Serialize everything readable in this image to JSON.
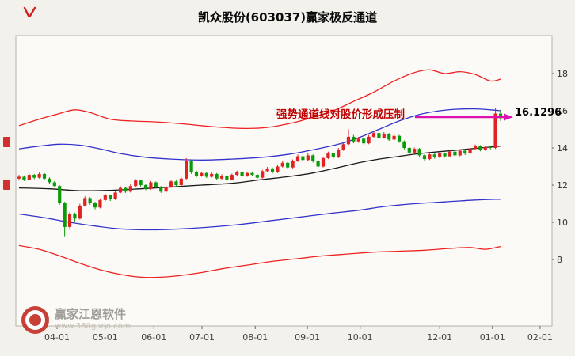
{
  "title": "凯众股份(603037)赢家极反通道",
  "annotation": {
    "text": "强势通道线对股价形成压制",
    "price_label": "16.1296",
    "text_color": "#c00000",
    "arrow_color": "#dd10b0"
  },
  "watermark": {
    "name": "赢家江恩软件",
    "url": "www.360gann.com"
  },
  "chart_data": {
    "type": "candlestick",
    "title": "凯众股份(603037)赢家极反通道",
    "xlim": [
      -0.63,
      105.16
    ],
    "ylim": [
      4.43,
      20.04
    ],
    "y_ticks": [
      8,
      10,
      12,
      14,
      16,
      18
    ],
    "x_ticks": [
      {
        "label": "04-01",
        "i": 7.5
      },
      {
        "label": "05-01",
        "i": 17.0
      },
      {
        "label": "06-01",
        "i": 26.6
      },
      {
        "label": "07-01",
        "i": 36.1
      },
      {
        "label": "08-01",
        "i": 46.6
      },
      {
        "label": "09-01",
        "i": 56.9
      },
      {
        "label": "10-01",
        "i": 67.3
      },
      {
        "label": "12-01",
        "i": 83.0
      },
      {
        "label": "01-01",
        "i": 93.4
      },
      {
        "label": "02-01",
        "i": 102.8
      }
    ],
    "colors": {
      "up": "#e02222",
      "down": "#0a9a0a"
    },
    "ohlc": [
      [
        12.35,
        12.55,
        12.25,
        12.45
      ],
      [
        12.45,
        12.52,
        12.22,
        12.3
      ],
      [
        12.3,
        12.62,
        12.26,
        12.55
      ],
      [
        12.55,
        12.6,
        12.32,
        12.4
      ],
      [
        12.4,
        12.68,
        12.35,
        12.6
      ],
      [
        12.6,
        12.65,
        12.28,
        12.35
      ],
      [
        12.35,
        12.42,
        12.08,
        12.15
      ],
      [
        12.15,
        12.22,
        11.88,
        11.95
      ],
      [
        11.95,
        12.0,
        10.95,
        11.05
      ],
      [
        11.05,
        11.1,
        9.25,
        9.75
      ],
      [
        9.75,
        10.55,
        9.6,
        10.45
      ],
      [
        10.45,
        10.52,
        10.05,
        10.2
      ],
      [
        10.2,
        11.0,
        10.15,
        10.9
      ],
      [
        10.9,
        11.4,
        10.85,
        11.3
      ],
      [
        11.3,
        11.35,
        10.95,
        11.05
      ],
      [
        11.05,
        11.1,
        10.7,
        10.8
      ],
      [
        10.8,
        11.28,
        10.75,
        11.2
      ],
      [
        11.2,
        11.55,
        11.12,
        11.45
      ],
      [
        11.45,
        11.5,
        11.15,
        11.25
      ],
      [
        11.25,
        11.68,
        11.2,
        11.6
      ],
      [
        11.6,
        11.95,
        11.55,
        11.85
      ],
      [
        11.85,
        11.92,
        11.58,
        11.65
      ],
      [
        11.65,
        12.05,
        11.6,
        11.95
      ],
      [
        11.95,
        12.32,
        11.9,
        12.25
      ],
      [
        12.25,
        12.3,
        11.92,
        12.0
      ],
      [
        12.0,
        12.08,
        11.72,
        11.8
      ],
      [
        11.8,
        12.22,
        11.75,
        12.15
      ],
      [
        12.15,
        12.2,
        11.82,
        11.9
      ],
      [
        11.9,
        11.95,
        11.58,
        11.65
      ],
      [
        11.65,
        12.0,
        11.6,
        11.9
      ],
      [
        11.9,
        12.28,
        11.85,
        12.2
      ],
      [
        12.2,
        12.25,
        11.92,
        12.0
      ],
      [
        12.0,
        12.42,
        11.95,
        12.35
      ],
      [
        12.35,
        13.45,
        12.3,
        13.3
      ],
      [
        13.3,
        13.35,
        12.6,
        12.7
      ],
      [
        12.7,
        12.78,
        12.42,
        12.5
      ],
      [
        12.5,
        12.72,
        12.45,
        12.65
      ],
      [
        12.65,
        12.7,
        12.38,
        12.45
      ],
      [
        12.45,
        12.68,
        12.4,
        12.6
      ],
      [
        12.6,
        12.65,
        12.28,
        12.35
      ],
      [
        12.35,
        12.58,
        12.3,
        12.5
      ],
      [
        12.5,
        12.55,
        12.22,
        12.3
      ],
      [
        12.3,
        12.62,
        12.25,
        12.55
      ],
      [
        12.55,
        12.78,
        12.5,
        12.7
      ],
      [
        12.7,
        12.75,
        12.42,
        12.5
      ],
      [
        12.5,
        12.72,
        12.45,
        12.65
      ],
      [
        12.65,
        12.7,
        12.48,
        12.55
      ],
      [
        12.55,
        12.6,
        12.32,
        12.4
      ],
      [
        12.4,
        12.82,
        12.35,
        12.75
      ],
      [
        12.75,
        12.98,
        12.7,
        12.9
      ],
      [
        12.9,
        12.95,
        12.62,
        12.7
      ],
      [
        12.7,
        13.08,
        12.65,
        13.0
      ],
      [
        13.0,
        13.28,
        12.95,
        13.2
      ],
      [
        13.2,
        13.25,
        12.88,
        12.95
      ],
      [
        12.95,
        13.38,
        12.9,
        13.3
      ],
      [
        13.3,
        13.65,
        13.25,
        13.55
      ],
      [
        13.55,
        13.6,
        13.28,
        13.35
      ],
      [
        13.35,
        13.7,
        13.3,
        13.6
      ],
      [
        13.6,
        13.65,
        13.22,
        13.3
      ],
      [
        13.3,
        13.35,
        12.92,
        13.0
      ],
      [
        13.0,
        13.52,
        12.95,
        13.45
      ],
      [
        13.45,
        13.8,
        13.4,
        13.7
      ],
      [
        13.7,
        13.75,
        13.42,
        13.5
      ],
      [
        13.5,
        14.0,
        13.45,
        13.9
      ],
      [
        13.9,
        14.3,
        13.85,
        14.2
      ],
      [
        14.2,
        15.0,
        14.15,
        14.6
      ],
      [
        14.6,
        14.7,
        14.25,
        14.35
      ],
      [
        14.35,
        14.6,
        14.28,
        14.5
      ],
      [
        14.5,
        14.55,
        14.18,
        14.25
      ],
      [
        14.25,
        14.7,
        14.2,
        14.6
      ],
      [
        14.6,
        14.92,
        14.55,
        14.8
      ],
      [
        14.8,
        14.85,
        14.48,
        14.55
      ],
      [
        14.55,
        14.85,
        14.5,
        14.75
      ],
      [
        14.75,
        14.8,
        14.38,
        14.45
      ],
      [
        14.45,
        14.75,
        14.4,
        14.65
      ],
      [
        14.65,
        14.7,
        14.28,
        14.35
      ],
      [
        14.35,
        14.4,
        13.92,
        14.0
      ],
      [
        14.0,
        14.05,
        13.68,
        13.75
      ],
      [
        13.75,
        14.02,
        13.7,
        13.95
      ],
      [
        13.95,
        14.0,
        13.52,
        13.6
      ],
      [
        13.6,
        13.65,
        13.32,
        13.4
      ],
      [
        13.4,
        13.72,
        13.35,
        13.65
      ],
      [
        13.65,
        13.7,
        13.42,
        13.5
      ],
      [
        13.5,
        13.78,
        13.45,
        13.7
      ],
      [
        13.7,
        13.75,
        13.48,
        13.55
      ],
      [
        13.55,
        13.88,
        13.5,
        13.8
      ],
      [
        13.8,
        13.85,
        13.52,
        13.6
      ],
      [
        13.6,
        13.92,
        13.55,
        13.85
      ],
      [
        13.85,
        13.9,
        13.62,
        13.7
      ],
      [
        13.7,
        14.02,
        13.65,
        13.95
      ],
      [
        13.95,
        14.18,
        13.9,
        14.1
      ],
      [
        14.1,
        14.15,
        13.82,
        13.9
      ],
      [
        13.9,
        14.12,
        13.85,
        14.05
      ],
      [
        14.05,
        14.1,
        13.92,
        14.0
      ],
      [
        14.0,
        16.13,
        13.95,
        15.85
      ],
      [
        15.85,
        16.05,
        15.45,
        15.6
      ]
    ],
    "channels": [
      {
        "name": "outer-upper-red",
        "color": "#ee2222",
        "points": [
          [
            0,
            15.2
          ],
          [
            4,
            15.55
          ],
          [
            8,
            15.85
          ],
          [
            11,
            16.05
          ],
          [
            14,
            15.9
          ],
          [
            18,
            15.55
          ],
          [
            22,
            15.45
          ],
          [
            27,
            15.4
          ],
          [
            32,
            15.3
          ],
          [
            38,
            15.15
          ],
          [
            44,
            15.05
          ],
          [
            49,
            15.1
          ],
          [
            54,
            15.35
          ],
          [
            58,
            15.65
          ],
          [
            62,
            16.0
          ],
          [
            66,
            16.5
          ],
          [
            70,
            17.0
          ],
          [
            74,
            17.6
          ],
          [
            78,
            18.05
          ],
          [
            81,
            18.2
          ],
          [
            84,
            18.0
          ],
          [
            87,
            18.1
          ],
          [
            90,
            17.95
          ],
          [
            93,
            17.6
          ],
          [
            95,
            17.7
          ]
        ]
      },
      {
        "name": "inner-upper-blue",
        "color": "#3333cc",
        "points": [
          [
            0,
            13.95
          ],
          [
            4,
            14.1
          ],
          [
            8,
            14.2
          ],
          [
            12,
            14.15
          ],
          [
            16,
            13.95
          ],
          [
            20,
            13.7
          ],
          [
            25,
            13.5
          ],
          [
            30,
            13.4
          ],
          [
            36,
            13.35
          ],
          [
            42,
            13.4
          ],
          [
            48,
            13.5
          ],
          [
            53,
            13.65
          ],
          [
            58,
            13.9
          ],
          [
            63,
            14.2
          ],
          [
            67,
            14.55
          ],
          [
            71,
            15.0
          ],
          [
            75,
            15.45
          ],
          [
            79,
            15.8
          ],
          [
            83,
            16.0
          ],
          [
            86,
            16.08
          ],
          [
            90,
            16.1
          ],
          [
            93,
            16.05
          ],
          [
            95,
            16.0
          ]
        ]
      },
      {
        "name": "middle-black",
        "color": "#1a1a1a",
        "points": [
          [
            0,
            11.85
          ],
          [
            6,
            11.8
          ],
          [
            12,
            11.7
          ],
          [
            18,
            11.72
          ],
          [
            24,
            11.8
          ],
          [
            30,
            11.9
          ],
          [
            36,
            12.0
          ],
          [
            42,
            12.1
          ],
          [
            48,
            12.3
          ],
          [
            53,
            12.45
          ],
          [
            58,
            12.65
          ],
          [
            63,
            12.95
          ],
          [
            67,
            13.2
          ],
          [
            71,
            13.4
          ],
          [
            75,
            13.55
          ],
          [
            79,
            13.7
          ],
          [
            83,
            13.8
          ],
          [
            87,
            13.9
          ],
          [
            91,
            14.0
          ],
          [
            95,
            14.1
          ]
        ]
      },
      {
        "name": "inner-lower-blue",
        "color": "#3333cc",
        "points": [
          [
            0,
            10.45
          ],
          [
            5,
            10.25
          ],
          [
            10,
            10.0
          ],
          [
            15,
            9.8
          ],
          [
            20,
            9.65
          ],
          [
            26,
            9.6
          ],
          [
            32,
            9.65
          ],
          [
            38,
            9.75
          ],
          [
            44,
            9.9
          ],
          [
            50,
            10.1
          ],
          [
            56,
            10.3
          ],
          [
            62,
            10.5
          ],
          [
            67,
            10.65
          ],
          [
            72,
            10.85
          ],
          [
            78,
            11.0
          ],
          [
            84,
            11.1
          ],
          [
            90,
            11.2
          ],
          [
            95,
            11.25
          ]
        ]
      },
      {
        "name": "outer-lower-red",
        "color": "#ee2222",
        "points": [
          [
            0,
            8.75
          ],
          [
            4,
            8.55
          ],
          [
            8,
            8.2
          ],
          [
            12,
            7.8
          ],
          [
            16,
            7.45
          ],
          [
            20,
            7.2
          ],
          [
            24,
            7.05
          ],
          [
            28,
            7.05
          ],
          [
            32,
            7.15
          ],
          [
            36,
            7.3
          ],
          [
            40,
            7.5
          ],
          [
            45,
            7.7
          ],
          [
            50,
            7.9
          ],
          [
            55,
            8.05
          ],
          [
            60,
            8.2
          ],
          [
            65,
            8.3
          ],
          [
            70,
            8.4
          ],
          [
            75,
            8.45
          ],
          [
            80,
            8.5
          ],
          [
            85,
            8.6
          ],
          [
            89,
            8.65
          ],
          [
            92,
            8.55
          ],
          [
            95,
            8.7
          ]
        ]
      }
    ]
  }
}
